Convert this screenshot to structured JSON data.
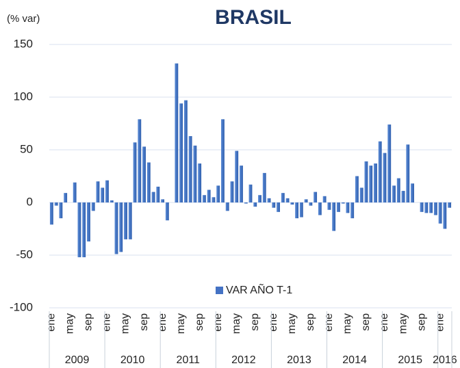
{
  "chart_data": {
    "type": "bar",
    "title": "BRASIL",
    "y_label": "(% var)",
    "color": "#4472c4",
    "grid": true,
    "ylim": [
      -100,
      150
    ],
    "yticks": [
      -100,
      -50,
      0,
      50,
      100,
      150
    ],
    "categories": [
      "ene",
      null,
      null,
      null,
      "may",
      null,
      null,
      null,
      "sep",
      null,
      null,
      null,
      "ene",
      null,
      null,
      null,
      "may",
      null,
      null,
      null,
      "sep",
      null,
      null,
      null,
      "ene",
      null,
      null,
      null,
      "may",
      null,
      null,
      null,
      "sep",
      null,
      null,
      null,
      "ene",
      null,
      null,
      null,
      "may",
      null,
      null,
      null,
      "sep",
      null,
      null,
      null,
      "ene",
      null,
      null,
      null,
      "may",
      null,
      null,
      null,
      "sep",
      null,
      null,
      null,
      "ene",
      null,
      null,
      null,
      "may",
      null,
      null,
      null,
      "sep",
      null,
      null,
      null,
      "ene",
      null,
      null,
      null,
      "may",
      null,
      null,
      null,
      "sep",
      null,
      null,
      null,
      "ene",
      null,
      null
    ],
    "groups": [
      {
        "label": "2009",
        "months": 12
      },
      {
        "label": "2010",
        "months": 12
      },
      {
        "label": "2011",
        "months": 12
      },
      {
        "label": "2012",
        "months": 12
      },
      {
        "label": "2013",
        "months": 12
      },
      {
        "label": "2014",
        "months": 12
      },
      {
        "label": "2015",
        "months": 12
      },
      {
        "label": "2016",
        "months": 3
      }
    ],
    "series": [
      {
        "name": "VAR AÑO T-1",
        "color": "#4472c4",
        "values": [
          -21,
          -3,
          -15,
          9,
          0,
          19,
          -52,
          -52,
          -37,
          -8,
          20,
          14,
          21,
          2,
          -49,
          -47,
          -35,
          -35,
          57,
          79,
          53,
          38,
          10,
          15,
          3,
          -17,
          0,
          132,
          94,
          97,
          63,
          54,
          37,
          7,
          12,
          5,
          16,
          79,
          -8,
          20,
          49,
          35,
          -1,
          17,
          -4,
          7,
          28,
          4,
          -5,
          -9,
          9,
          4,
          -2,
          -15,
          -14,
          3,
          -3,
          10,
          -12,
          6,
          -7,
          -27,
          -9,
          -1,
          -10,
          -15,
          25,
          14,
          39,
          35,
          37,
          58,
          47,
          74,
          16,
          23,
          11,
          55,
          18,
          0,
          -9,
          -10,
          -10,
          -12,
          -20,
          -25,
          -5
        ]
      }
    ]
  }
}
